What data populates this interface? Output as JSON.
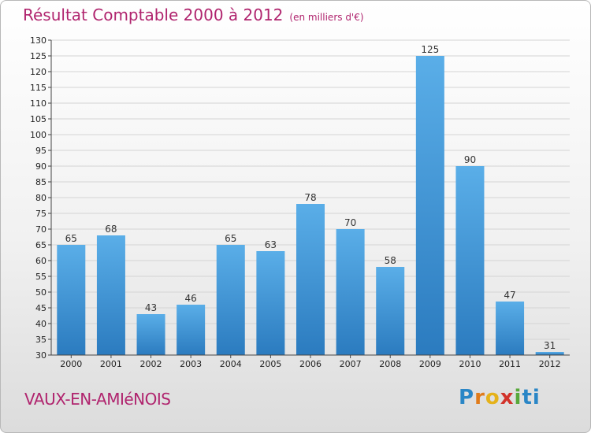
{
  "header": {
    "title": "Résultat Comptable 2000 à 2012",
    "subtitle": "(en milliers d'€)"
  },
  "footer": {
    "place": "VAUX-EN-AMIéNOIS",
    "logo": "Proxiti"
  },
  "colors": {
    "bar_light": "#5aaee8",
    "bar_dark": "#2b7bbf",
    "title": "#b0246e"
  },
  "chart_data": {
    "type": "bar",
    "title": "Résultat Comptable 2000 à 2012",
    "subtitle": "(en milliers d'€)",
    "categories": [
      "2000",
      "2001",
      "2002",
      "2003",
      "2004",
      "2005",
      "2006",
      "2007",
      "2008",
      "2009",
      "2010",
      "2011",
      "2012"
    ],
    "values": [
      65,
      68,
      43,
      46,
      65,
      63,
      78,
      70,
      58,
      125,
      90,
      47,
      31
    ],
    "ylim": [
      30,
      130
    ],
    "yticks": [
      30,
      35,
      40,
      45,
      50,
      55,
      60,
      65,
      70,
      75,
      80,
      85,
      90,
      95,
      100,
      105,
      110,
      115,
      120,
      125,
      130
    ],
    "grid": true,
    "legend": "none"
  }
}
